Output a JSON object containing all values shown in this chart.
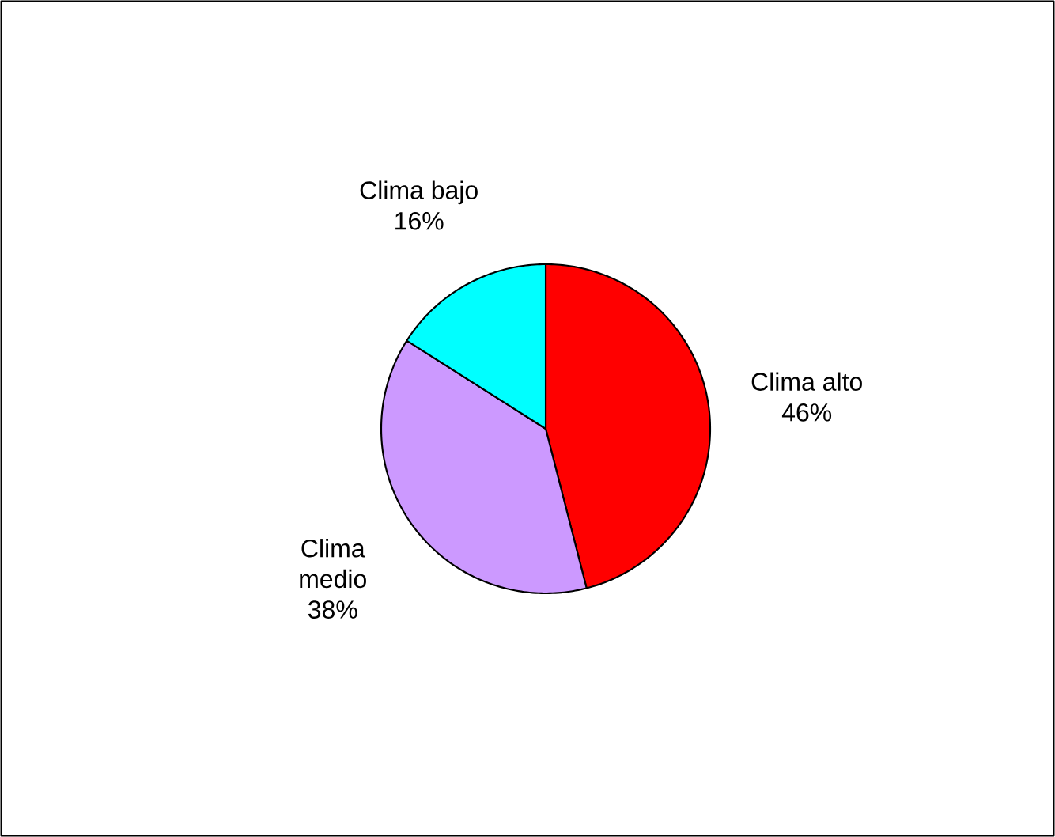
{
  "chart_data": {
    "type": "pie",
    "categories": [
      "Clima alto",
      "Clima medio",
      "Clima bajo"
    ],
    "values": [
      46,
      38,
      16
    ],
    "colors": [
      "#ff0000",
      "#cc99ff",
      "#00ffff"
    ],
    "value_labels": [
      "46%",
      "38%",
      "16%"
    ],
    "legend": false
  }
}
